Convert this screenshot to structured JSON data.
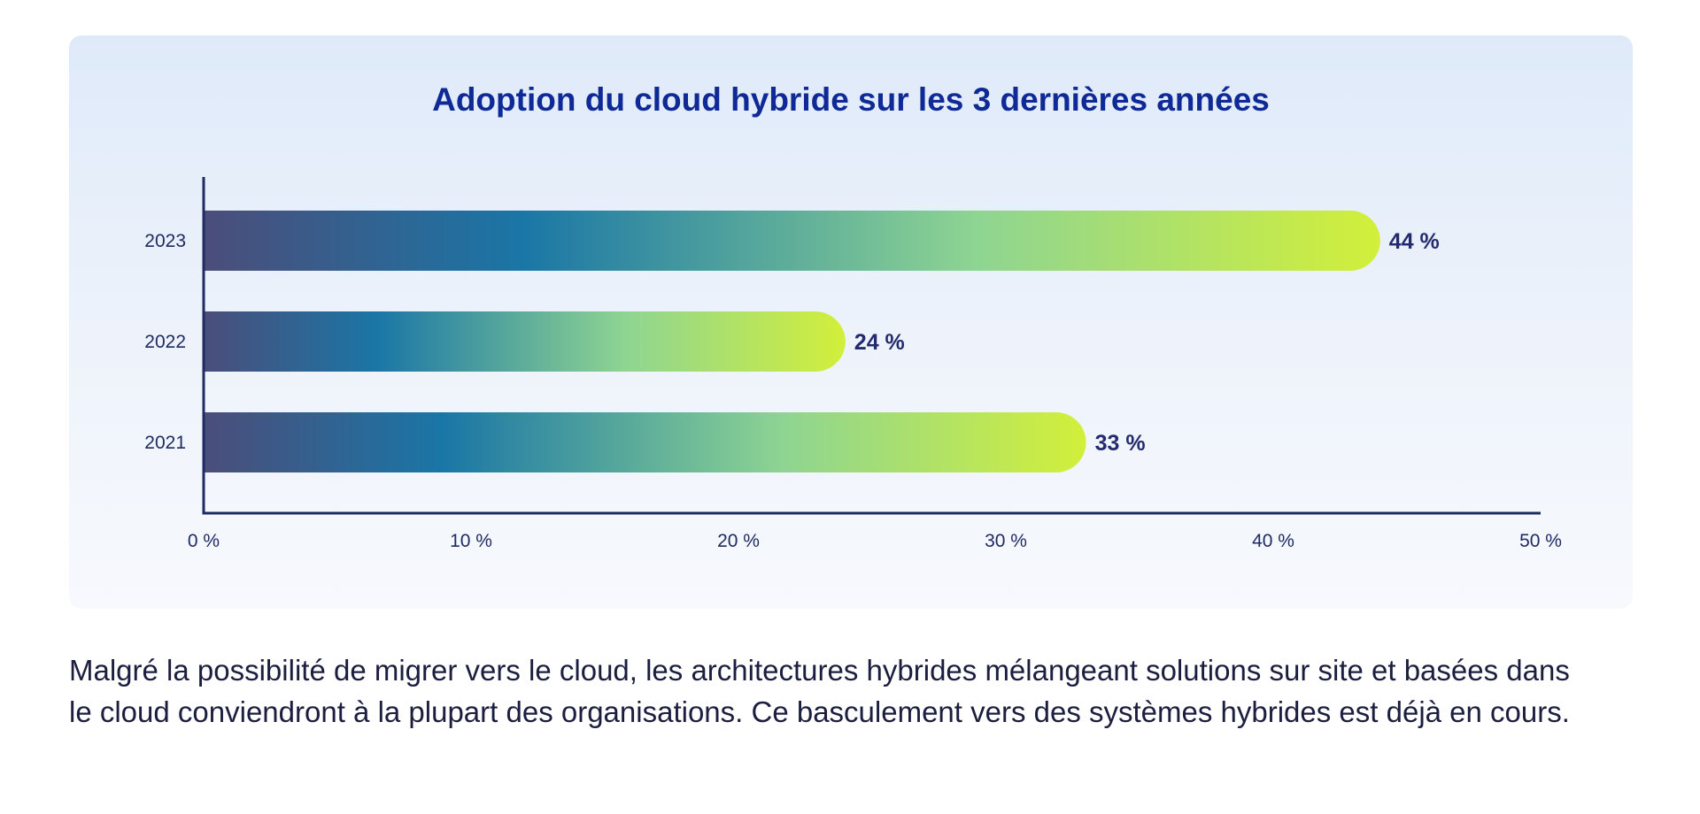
{
  "chart_data": {
    "type": "bar",
    "orientation": "horizontal",
    "title": "Adoption du cloud hybride sur les 3 dernières années",
    "xlabel": "",
    "ylabel": "",
    "categories": [
      "2023",
      "2022",
      "2021"
    ],
    "values": [
      44,
      24,
      33
    ],
    "value_labels": [
      "44 %",
      "24 %",
      "33 %"
    ],
    "xlim": [
      0,
      50
    ],
    "x_ticks": [
      0,
      10,
      20,
      30,
      40,
      50
    ],
    "x_tick_labels": [
      "0 %",
      "10 %",
      "20 %",
      "30 %",
      "40 %",
      "50 %"
    ],
    "grid": false,
    "bar_gradient": [
      "#4b4d7a",
      "#1a76a6",
      "#8fd592",
      "#d2ef3a"
    ],
    "axis_color": "#1f2b63"
  },
  "caption": "Malgré la possibilité de migrer vers le cloud, les architectures hybrides mélangeant solutions sur site et basées dans le cloud conviendront à la plupart des organisations. Ce basculement vers des systèmes hybrides est déjà en cours."
}
